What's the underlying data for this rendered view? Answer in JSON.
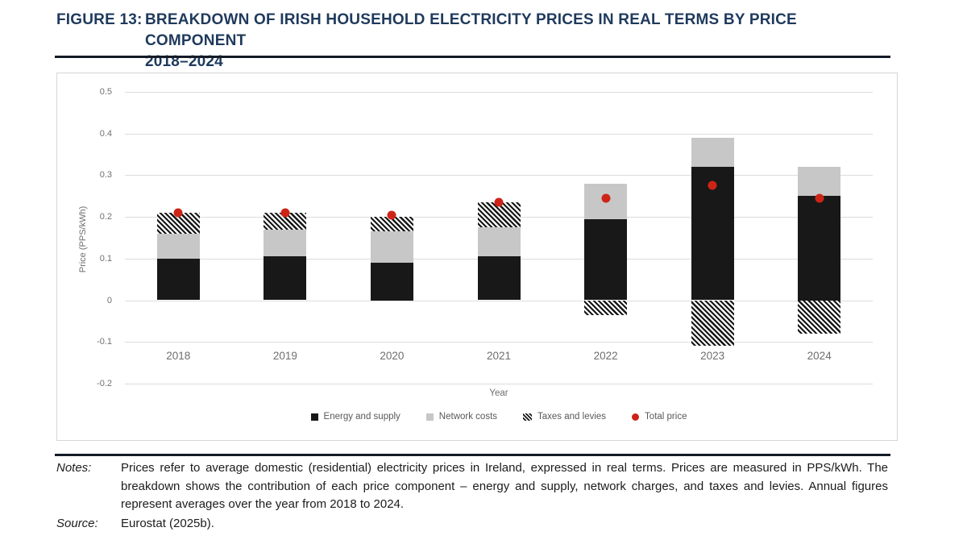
{
  "figure": {
    "label": "FIGURE 13:",
    "title_line1": "BREAKDOWN OF IRISH HOUSEHOLD ELECTRICITY PRICES IN REAL TERMS BY PRICE COMPONENT",
    "title_line2": "2018–2024",
    "title_color": "#1f3a5c",
    "rule_color": "#141b26"
  },
  "notes": {
    "label": "Notes:",
    "text": "Prices refer to average domestic (residential) electricity prices in Ireland, expressed in real terms. Prices are measured in PPS/kWh. The breakdown shows the contribution of each price component – energy and supply, network charges, and taxes and levies. Annual figures represent averages over the year from 2018 to 2024."
  },
  "source": {
    "label": "Source:",
    "text": "Eurostat (2025b)."
  },
  "chart_data": {
    "type": "bar",
    "stacked": true,
    "title": "",
    "xlabel": "Year",
    "ylabel": "Price (PPS/kWh)",
    "categories": [
      "2018",
      "2019",
      "2020",
      "2021",
      "2022",
      "2023",
      "2024"
    ],
    "series": [
      {
        "name": "Energy and supply",
        "style": "solid",
        "color": "#181818",
        "values": [
          0.1,
          0.105,
          0.09,
          0.105,
          0.195,
          0.32,
          0.25
        ]
      },
      {
        "name": "Network costs",
        "style": "solid",
        "color": "#c7c7c7",
        "values": [
          0.06,
          0.065,
          0.075,
          0.07,
          0.085,
          0.07,
          0.07
        ]
      },
      {
        "name": "Taxes and levies",
        "style": "diagonal-hatch",
        "color": "#161616",
        "values": [
          0.05,
          0.04,
          0.035,
          0.06,
          -0.035,
          -0.11,
          -0.08
        ]
      }
    ],
    "points": {
      "name": "Total price",
      "marker": "circle",
      "color": "#ce2418",
      "values": [
        0.21,
        0.21,
        0.205,
        0.235,
        0.245,
        0.275,
        0.245
      ]
    },
    "ylim": [
      -0.2,
      0.5
    ],
    "yticks": [
      0.5,
      0.4,
      0.3,
      0.2,
      0.1,
      0,
      -0.1,
      -0.2
    ],
    "grid": true,
    "grid_color": "#dcdcdc",
    "legend_position": "bottom"
  }
}
